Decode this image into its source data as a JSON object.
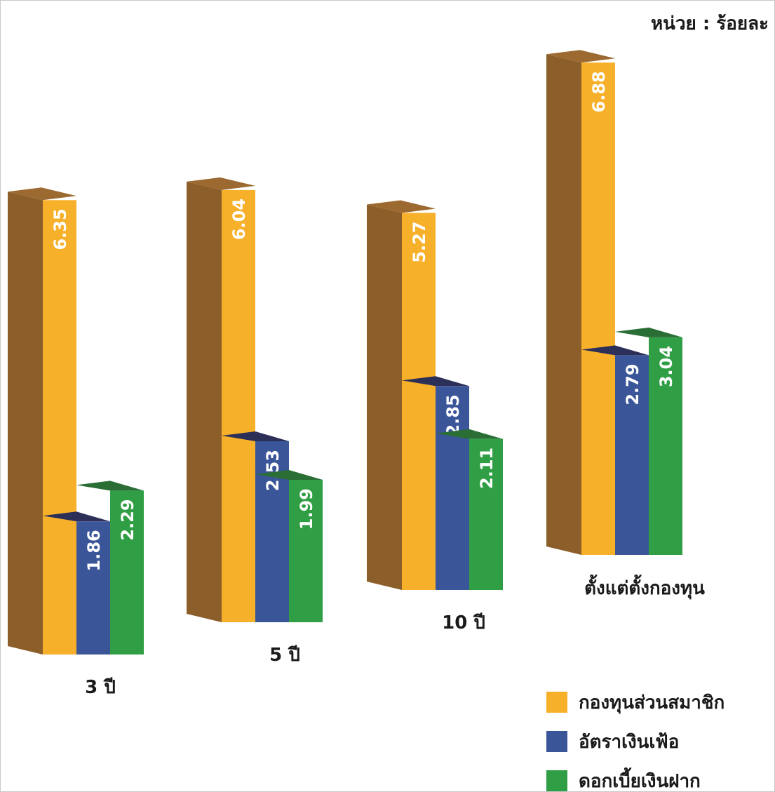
{
  "unit_label": "หน่วย : ร้อยละ",
  "chart_data": {
    "type": "bar",
    "categories": [
      "3 ปี",
      "5 ปี",
      "10 ปี",
      "ตั้งแต่ตั้งกองทุน"
    ],
    "series": [
      {
        "name": "กองทุนส่วนสมาชิก",
        "values": [
          6.35,
          6.04,
          5.27,
          6.88
        ],
        "color": "#f7b029"
      },
      {
        "name": "อัตราเงินเฟ้อ",
        "values": [
          1.86,
          2.53,
          2.85,
          2.79
        ],
        "color": "#3b5698"
      },
      {
        "name": "ดอกเบี้ยเงินฝาก",
        "values": [
          2.29,
          1.99,
          2.11,
          3.04
        ],
        "color": "#2f9e44"
      }
    ],
    "value_labels": {
      "3 ปี": [
        "6.35",
        "1.86",
        "2.29"
      ],
      "5 ปี": [
        "6.04",
        "2.53",
        "1.99"
      ],
      "10 ปี": [
        "5.27",
        "2.85",
        "2.11"
      ],
      "ตั้งแต่ตั้งกองทุน": [
        "6.88",
        "2.79",
        "3.04"
      ]
    },
    "side_colors": [
      "#8c5e29",
      "#2b2f55",
      "#276b31"
    ],
    "ylim": [
      0,
      7
    ],
    "grid": false,
    "legend_position": "bottom-right",
    "style": "3d-bar"
  }
}
